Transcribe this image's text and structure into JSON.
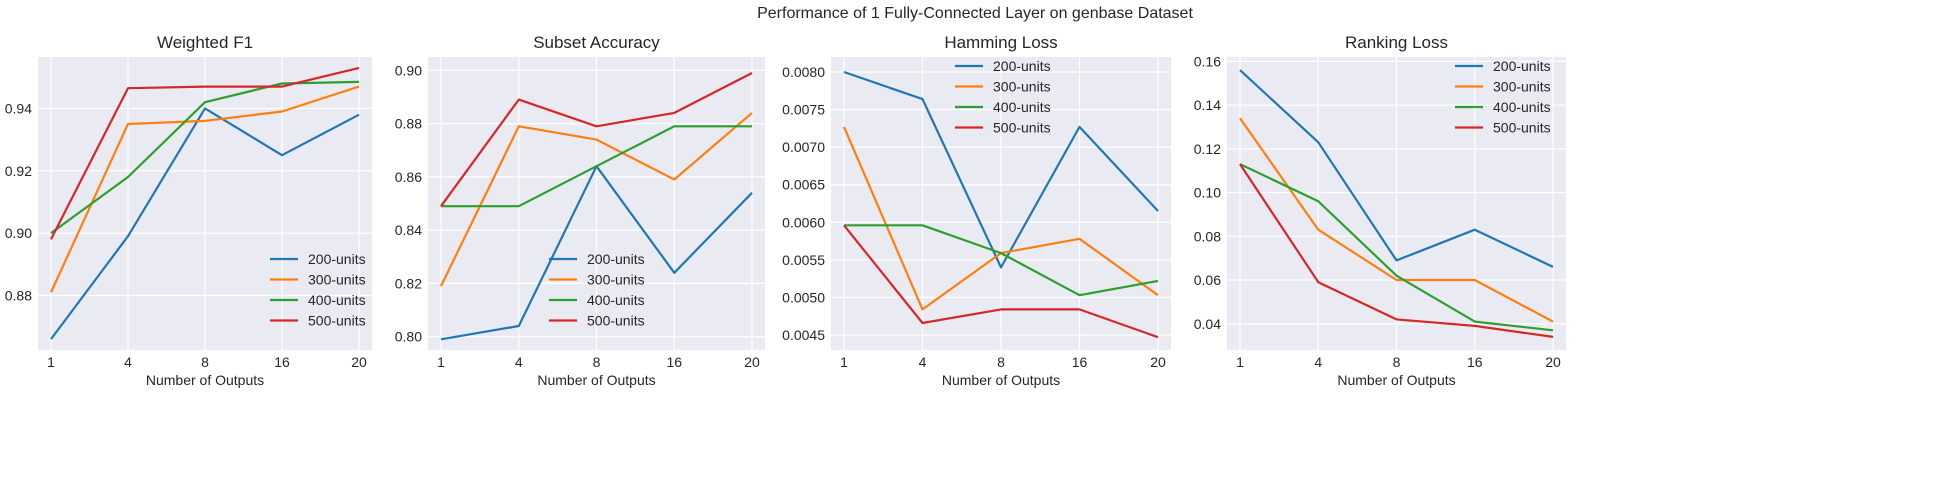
{
  "suptitle": "Performance of 1 Fully-Connected Layer on genbase Dataset",
  "chart_data": [
    {
      "type": "line",
      "title": "Weighted F1",
      "xlabel": "Number of Outputs",
      "ylabel": "",
      "categories": [
        "1",
        "4",
        "8",
        "16",
        "20"
      ],
      "ylim": [
        0.8625,
        0.9565
      ],
      "yticks": [
        0.88,
        0.9,
        0.92,
        0.94
      ],
      "ytick_labels": [
        "0.88",
        "0.90",
        "0.92",
        "0.94"
      ],
      "grid": true,
      "legend": "bottom-right",
      "series": [
        {
          "name": "200-units",
          "color": "#1f77b4",
          "values": [
            0.866,
            0.899,
            0.94,
            0.925,
            0.938
          ]
        },
        {
          "name": "300-units",
          "color": "#ff7f0e",
          "values": [
            0.881,
            0.935,
            0.936,
            0.939,
            0.947
          ]
        },
        {
          "name": "400-units",
          "color": "#2ca02c",
          "values": [
            0.9,
            0.918,
            0.942,
            0.948,
            0.9485
          ]
        },
        {
          "name": "500-units",
          "color": "#d62728",
          "values": [
            0.898,
            0.9465,
            0.947,
            0.947,
            0.953
          ]
        }
      ]
    },
    {
      "type": "line",
      "title": "Subset Accuracy",
      "xlabel": "Number of Outputs",
      "ylabel": "",
      "categories": [
        "1",
        "4",
        "8",
        "16",
        "20"
      ],
      "ylim": [
        0.795,
        0.905
      ],
      "yticks": [
        0.8,
        0.82,
        0.84,
        0.86,
        0.88,
        0.9
      ],
      "ytick_labels": [
        "0.80",
        "0.82",
        "0.84",
        "0.86",
        "0.88",
        "0.90"
      ],
      "grid": true,
      "legend": "bottom-center",
      "series": [
        {
          "name": "200-units",
          "color": "#1f77b4",
          "values": [
            0.799,
            0.804,
            0.864,
            0.824,
            0.854
          ]
        },
        {
          "name": "300-units",
          "color": "#ff7f0e",
          "values": [
            0.819,
            0.879,
            0.874,
            0.859,
            0.884
          ]
        },
        {
          "name": "400-units",
          "color": "#2ca02c",
          "values": [
            0.849,
            0.849,
            0.864,
            0.879,
            0.879
          ]
        },
        {
          "name": "500-units",
          "color": "#d62728",
          "values": [
            0.849,
            0.889,
            0.879,
            0.884,
            0.899
          ]
        }
      ]
    },
    {
      "type": "line",
      "title": "Hamming Loss",
      "xlabel": "Number of Outputs",
      "ylabel": "",
      "categories": [
        "1",
        "4",
        "8",
        "16",
        "20"
      ],
      "ylim": [
        0.0043,
        0.0082
      ],
      "yticks": [
        0.0045,
        0.005,
        0.0055,
        0.006,
        0.0065,
        0.007,
        0.0075,
        0.008
      ],
      "ytick_labels": [
        "0.0045",
        "0.0050",
        "0.0055",
        "0.0060",
        "0.0065",
        "0.0070",
        "0.0075",
        "0.0080"
      ],
      "grid": true,
      "legend": "top-center",
      "series": [
        {
          "name": "200-units",
          "color": "#1f77b4",
          "values": [
            0.008,
            0.00764,
            0.0054,
            0.00727,
            0.00615
          ]
        },
        {
          "name": "300-units",
          "color": "#ff7f0e",
          "values": [
            0.00727,
            0.00484,
            0.00559,
            0.00578,
            0.00503
          ]
        },
        {
          "name": "400-units",
          "color": "#2ca02c",
          "values": [
            0.00596,
            0.00596,
            0.00559,
            0.00503,
            0.00522
          ]
        },
        {
          "name": "500-units",
          "color": "#d62728",
          "values": [
            0.00596,
            0.00466,
            0.00484,
            0.00484,
            0.00447
          ]
        }
      ]
    },
    {
      "type": "line",
      "title": "Ranking Loss",
      "xlabel": "Number of Outputs",
      "ylabel": "",
      "categories": [
        "1",
        "4",
        "8",
        "16",
        "20"
      ],
      "ylim": [
        0.028,
        0.162
      ],
      "yticks": [
        0.04,
        0.06,
        0.08,
        0.1,
        0.12,
        0.14,
        0.16
      ],
      "ytick_labels": [
        "0.04",
        "0.06",
        "0.08",
        "0.10",
        "0.12",
        "0.14",
        "0.16"
      ],
      "grid": true,
      "legend": "top-right",
      "series": [
        {
          "name": "200-units",
          "color": "#1f77b4",
          "values": [
            0.156,
            0.123,
            0.069,
            0.083,
            0.066
          ]
        },
        {
          "name": "300-units",
          "color": "#ff7f0e",
          "values": [
            0.134,
            0.083,
            0.06,
            0.06,
            0.041
          ]
        },
        {
          "name": "400-units",
          "color": "#2ca02c",
          "values": [
            0.113,
            0.096,
            0.062,
            0.041,
            0.037
          ]
        },
        {
          "name": "500-units",
          "color": "#d62728",
          "values": [
            0.113,
            0.059,
            0.042,
            0.039,
            0.034
          ]
        }
      ]
    }
  ]
}
